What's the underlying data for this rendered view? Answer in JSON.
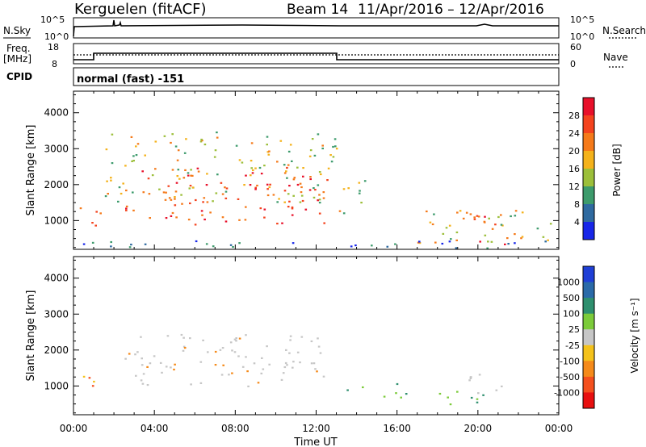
{
  "header": {
    "radar": "Kerguelen (fitACF)",
    "beam": "Beam 14",
    "date_range": "11/Apr/2016 – 12/Apr/2016"
  },
  "noise_panel": {
    "left_label": "N.Sky",
    "left_ticks": [
      "10^5",
      "10^0"
    ],
    "right_ticks": [
      "10^5",
      "10^0"
    ],
    "right_label": "N.Search"
  },
  "freq_panel": {
    "left_label_1": "Freq.",
    "left_label_2": "[MHz]",
    "left_ticks": [
      "18",
      "8"
    ],
    "right_ticks": [
      "60",
      "0"
    ],
    "right_label": "Nave"
  },
  "cpid_panel": {
    "label": "CPID",
    "text": "normal (fast) -151"
  },
  "x_axis": {
    "ticks": [
      "00:00",
      "04:00",
      "08:00",
      "12:00",
      "16:00",
      "20:00",
      "00:00"
    ],
    "label": "Time UT"
  },
  "power_panel": {
    "ylabel": "Slant Range [km]",
    "yticks": [
      "4000",
      "3000",
      "2000",
      "1000"
    ],
    "colorbar_label": "Power [dB]",
    "colorbar_ticks": [
      "28",
      "24",
      "20",
      "16",
      "12",
      "8",
      "4"
    ],
    "colorbar_colors": [
      "#e8102a",
      "#f4431e",
      "#f57a1a",
      "#f4b21b",
      "#9cbf3a",
      "#3d9b6c",
      "#2f6aa0",
      "#1726e8"
    ]
  },
  "velocity_panel": {
    "ylabel": "Slant Range [km]",
    "yticks": [
      "4000",
      "3000",
      "2000",
      "1000"
    ],
    "colorbar_label": "Velocity [m s⁻¹]",
    "colorbar_ticks": [
      "1000",
      "500",
      "100",
      "25",
      "-25",
      "-100",
      "-500",
      "-1000"
    ],
    "colorbar_colors": [
      "#1f3fd6",
      "#2a6aa8",
      "#2e8f6e",
      "#7ccb3a",
      "#c6c6c6",
      "#f4c21b",
      "#f58a1a",
      "#f4501e",
      "#e81010"
    ]
  },
  "chart_data": {
    "type": "heatmap",
    "x_range_hours": [
      0,
      24
    ],
    "y_range_km": [
      200,
      4600
    ],
    "frequency_mhz": [
      {
        "from": "00:00",
        "to": "01:00",
        "value": 8
      },
      {
        "from": "01:00",
        "to": "13:00",
        "value": 12
      },
      {
        "from": "13:00",
        "to": "24:00",
        "value": 8
      }
    ],
    "power_regions": [
      {
        "t": [
          0.1,
          1.3
        ],
        "r": [
          750,
          1450
        ],
        "level": "high"
      },
      {
        "t": [
          2.5,
          12.6
        ],
        "r": [
          900,
          2500
        ],
        "level": "high"
      },
      {
        "t": [
          1.5,
          13.0
        ],
        "r": [
          1500,
          3500
        ],
        "level": "medium"
      },
      {
        "t": [
          13.0,
          14.5
        ],
        "r": [
          1200,
          2300
        ],
        "level": "medium"
      },
      {
        "t": [
          17.0,
          24.0
        ],
        "r": [
          400,
          1400
        ],
        "level": "medium"
      },
      {
        "t": [
          19.5,
          21.5
        ],
        "r": [
          800,
          1400
        ],
        "level": "high"
      },
      {
        "t": [
          20.0,
          21.5
        ],
        "r": [
          300,
          600
        ],
        "level": "high"
      },
      {
        "t": [
          0.0,
          24.0
        ],
        "r": [
          250,
          450
        ],
        "level": "low"
      }
    ],
    "velocity_regions": [
      {
        "t": [
          0.0,
          1.2
        ],
        "r": [
          900,
          1500
        ],
        "sign": "negative"
      },
      {
        "t": [
          2.5,
          12.6
        ],
        "r": [
          1000,
          2500
        ],
        "sign": "near-zero"
      },
      {
        "t": [
          13.5,
          16.5
        ],
        "r": [
          700,
          1100
        ],
        "sign": "positive"
      },
      {
        "t": [
          17.0,
          20.5
        ],
        "r": [
          500,
          900
        ],
        "sign": "positive"
      },
      {
        "t": [
          19.5,
          22.0
        ],
        "r": [
          800,
          1400
        ],
        "sign": "near-zero"
      }
    ]
  }
}
